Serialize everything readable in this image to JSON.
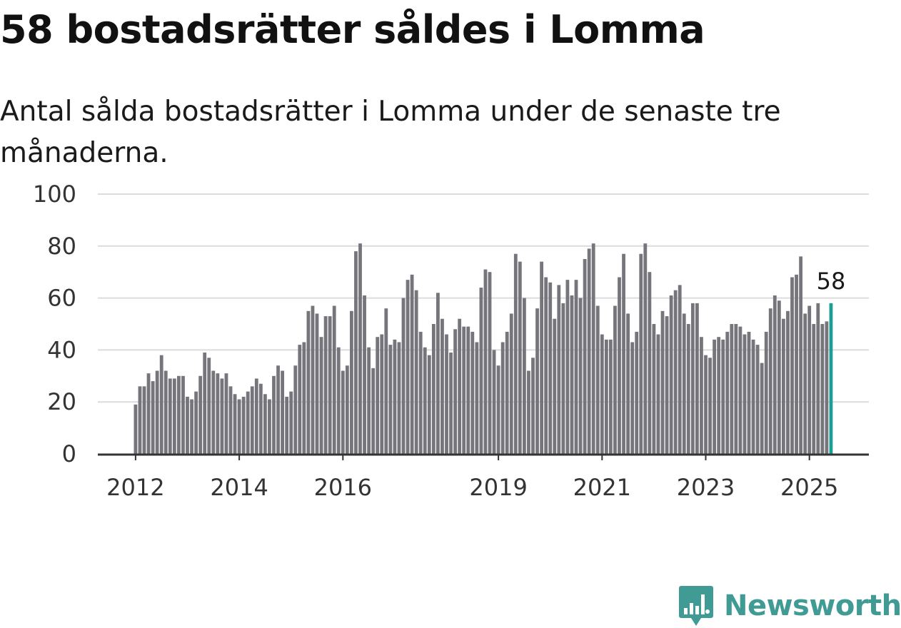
{
  "title": "58 bostadsrätter såldes i Lomma",
  "subtitle": "Antal sålda bostadsrätter i Lomma under de senaste tre månaderna.",
  "colors": {
    "bar": "#76757b",
    "highlight": "#1b9e96",
    "brand": "#3f9b93",
    "grid": "#dcdcdc",
    "baseline": "#333333"
  },
  "brand": {
    "name": "Newsworthy",
    "icon": "bar-chart-badge-icon"
  },
  "chart_data": {
    "type": "bar",
    "title": "58 bostadsrätter såldes i Lomma",
    "subtitle": "Antal sålda bostadsrätter i Lomma under de senaste tre månaderna.",
    "xlabel": "",
    "ylabel": "",
    "ylim": [
      0,
      100
    ],
    "yticks": [
      "0",
      "20",
      "40",
      "60",
      "80",
      "100"
    ],
    "xtick_labels": [
      "2012",
      "2014",
      "2016",
      "2019",
      "2021",
      "2023",
      "2025"
    ],
    "grid": true,
    "legend": "none",
    "last_value_label": "58",
    "series": [
      {
        "values": [
          19,
          26,
          26,
          31,
          28,
          32,
          38,
          32,
          29,
          29,
          30,
          30,
          22,
          21,
          24,
          30,
          39,
          37,
          32,
          31,
          29,
          31,
          26,
          23,
          21,
          22,
          24,
          26,
          29,
          27,
          23,
          21,
          30,
          34,
          32,
          22,
          24,
          34,
          42,
          43,
          55,
          57,
          54,
          45,
          53,
          53,
          57,
          41,
          32,
          34,
          55,
          78,
          81,
          61,
          41,
          33,
          45,
          46,
          56,
          42,
          44,
          43,
          60,
          67,
          69,
          63,
          47,
          41,
          38,
          50,
          62,
          52,
          46,
          39,
          48,
          52,
          49,
          49,
          47,
          43,
          64,
          71,
          70,
          40,
          34,
          43,
          47,
          54,
          77,
          74,
          60,
          32,
          37,
          56,
          74,
          68,
          66,
          52,
          65,
          58,
          67,
          61,
          67,
          60,
          75,
          79,
          81,
          57,
          46,
          44,
          44,
          57,
          68,
          77,
          54,
          43,
          47,
          77,
          81,
          70,
          50,
          46,
          55,
          53,
          61,
          63,
          65,
          54,
          50,
          58,
          58,
          45,
          38,
          37,
          44,
          45,
          44,
          47,
          50,
          50,
          49,
          46,
          47,
          44,
          42,
          35,
          47,
          56,
          61,
          59,
          52,
          55,
          68,
          69,
          76,
          54,
          57,
          50,
          58,
          50,
          51,
          58
        ]
      }
    ]
  }
}
